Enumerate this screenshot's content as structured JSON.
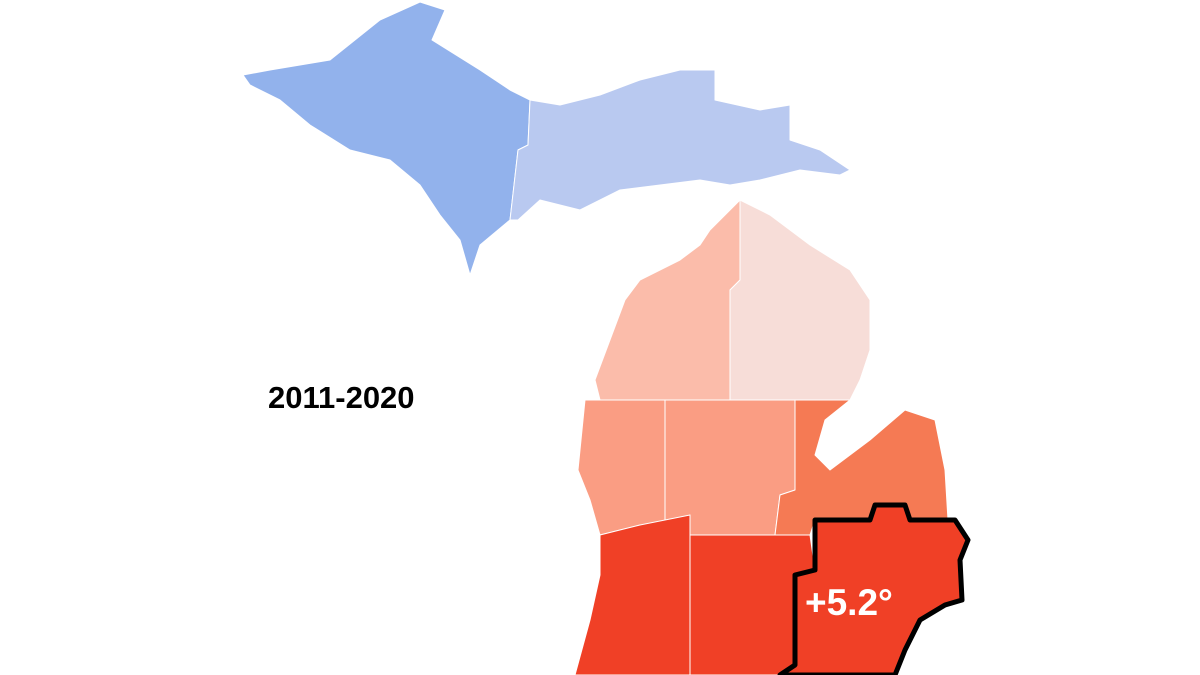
{
  "period": "2011-2020",
  "highlight": {
    "label": "+5.2°"
  }
}
